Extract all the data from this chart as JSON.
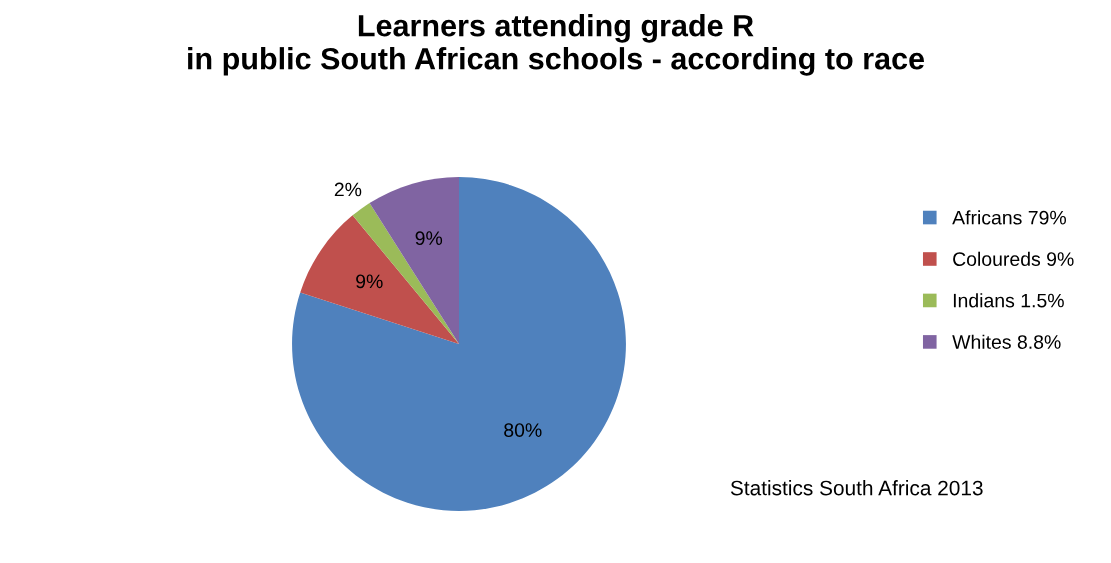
{
  "chart_data": {
    "type": "pie",
    "title": "Learners attending grade R\nin public South African schools - according to race",
    "categories": [
      "Africans 79%",
      "Coloureds 9%",
      "Indians 1.5%",
      "Whites 8.8%"
    ],
    "values": [
      80,
      9,
      2,
      9
    ],
    "value_labels": [
      "80%",
      "9%",
      "2%",
      "9%"
    ],
    "colors": [
      "#4f81bd",
      "#c0504d",
      "#9bbb59",
      "#8064a2"
    ],
    "legend": "right",
    "annotations": [
      "Statistics South Africa 2013"
    ]
  }
}
